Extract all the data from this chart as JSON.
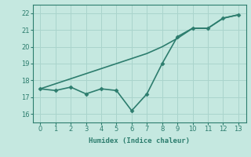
{
  "line1_x": [
    0,
    1,
    2,
    3,
    4,
    5,
    6,
    7,
    8,
    9,
    10,
    11,
    12,
    13
  ],
  "line1_y": [
    17.5,
    17.4,
    17.6,
    17.2,
    17.5,
    17.4,
    16.2,
    17.2,
    19.0,
    20.6,
    21.1,
    21.1,
    21.7,
    21.9
  ],
  "line2_x": [
    0,
    1,
    2,
    3,
    4,
    5,
    6,
    7,
    8,
    9,
    10,
    11,
    12,
    13
  ],
  "line2_y": [
    17.5,
    17.8,
    18.1,
    18.4,
    18.7,
    19.0,
    19.3,
    19.6,
    20.0,
    20.5,
    21.1,
    21.1,
    21.7,
    21.9
  ],
  "xlabel": "Humidex (Indice chaleur)",
  "xlim": [
    -0.5,
    13.5
  ],
  "ylim": [
    15.5,
    22.5
  ],
  "yticks": [
    16,
    17,
    18,
    19,
    20,
    21,
    22
  ],
  "xticks": [
    0,
    1,
    2,
    3,
    4,
    5,
    6,
    7,
    8,
    9,
    10,
    11,
    12,
    13
  ],
  "line_color": "#2d7d6e",
  "bg_color": "#c5e8e0",
  "grid_color": "#aad4cc",
  "marker": "D",
  "markersize": 2.5,
  "linewidth": 1.2
}
